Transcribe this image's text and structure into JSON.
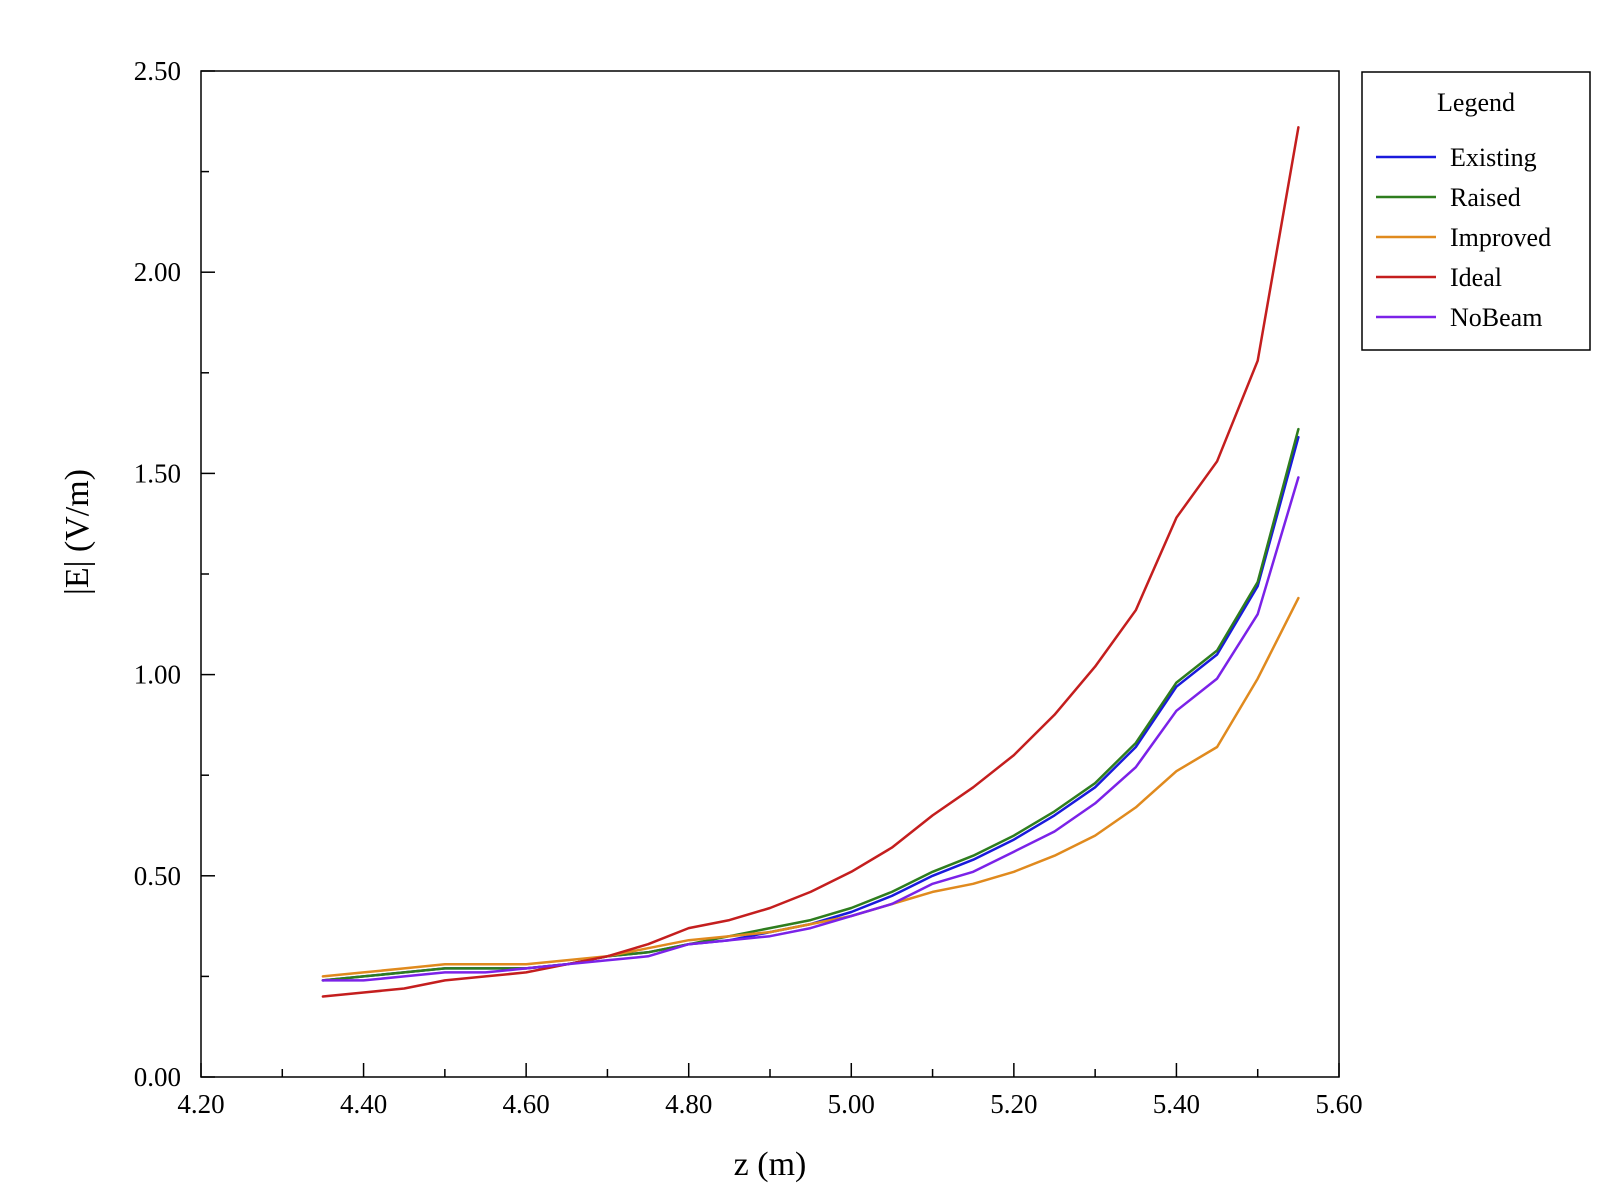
{
  "chart_data": {
    "type": "line",
    "xlabel": "z (m)",
    "ylabel": "|E| (V/m)",
    "xlim": [
      4.2,
      5.6
    ],
    "ylim": [
      0.0,
      2.5
    ],
    "x_ticks_major": [
      "4.20",
      "4.40",
      "4.60",
      "4.80",
      "5.00",
      "5.20",
      "5.40",
      "5.60"
    ],
    "y_ticks_major": [
      "0.00",
      "0.50",
      "1.00",
      "1.50",
      "2.00",
      "2.50"
    ],
    "grid": false,
    "legend": {
      "title": "Legend",
      "position": "right-top"
    },
    "x": [
      4.35,
      4.4,
      4.45,
      4.5,
      4.55,
      4.6,
      4.65,
      4.7,
      4.75,
      4.8,
      4.85,
      4.9,
      4.95,
      5.0,
      5.05,
      5.1,
      5.15,
      5.2,
      5.25,
      5.3,
      5.35,
      5.4,
      5.45,
      5.5,
      5.55
    ],
    "series": [
      {
        "name": "Existing",
        "color": "#1a1adc",
        "values": [
          0.24,
          0.25,
          0.26,
          0.27,
          0.27,
          0.27,
          0.28,
          0.3,
          0.31,
          0.33,
          0.34,
          0.36,
          0.38,
          0.41,
          0.45,
          0.5,
          0.54,
          0.59,
          0.65,
          0.72,
          0.82,
          0.97,
          1.05,
          1.22,
          1.59
        ]
      },
      {
        "name": "Raised",
        "color": "#2e7d1e",
        "values": [
          0.24,
          0.25,
          0.26,
          0.27,
          0.27,
          0.27,
          0.28,
          0.3,
          0.31,
          0.33,
          0.35,
          0.37,
          0.39,
          0.42,
          0.46,
          0.51,
          0.55,
          0.6,
          0.66,
          0.73,
          0.83,
          0.98,
          1.06,
          1.23,
          1.61
        ]
      },
      {
        "name": "Improved",
        "color": "#e08a1e",
        "values": [
          0.25,
          0.26,
          0.27,
          0.28,
          0.28,
          0.28,
          0.29,
          0.3,
          0.32,
          0.34,
          0.35,
          0.36,
          0.38,
          0.4,
          0.43,
          0.46,
          0.48,
          0.51,
          0.55,
          0.6,
          0.67,
          0.76,
          0.82,
          0.99,
          1.19
        ]
      },
      {
        "name": "Ideal",
        "color": "#c41e1e",
        "values": [
          0.2,
          0.21,
          0.22,
          0.24,
          0.25,
          0.26,
          0.28,
          0.3,
          0.33,
          0.37,
          0.39,
          0.42,
          0.46,
          0.51,
          0.57,
          0.65,
          0.72,
          0.8,
          0.9,
          1.02,
          1.16,
          1.39,
          1.53,
          1.78,
          2.36
        ]
      },
      {
        "name": "NoBeam",
        "color": "#7b22e8",
        "values": [
          0.24,
          0.24,
          0.25,
          0.26,
          0.26,
          0.27,
          0.28,
          0.29,
          0.3,
          0.33,
          0.34,
          0.35,
          0.37,
          0.4,
          0.43,
          0.48,
          0.51,
          0.56,
          0.61,
          0.68,
          0.77,
          0.91,
          0.99,
          1.15,
          1.49
        ]
      }
    ]
  }
}
